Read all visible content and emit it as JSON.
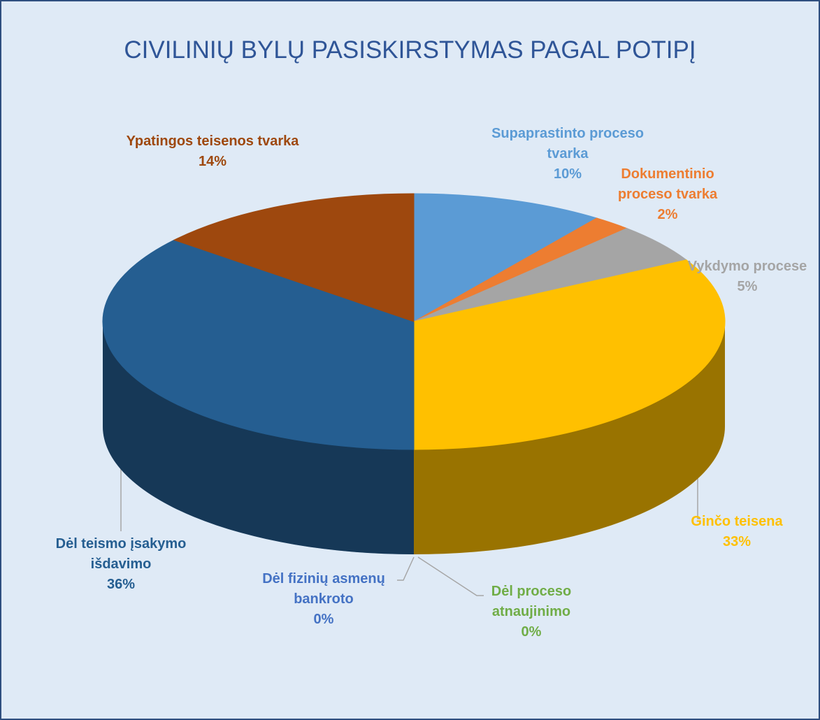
{
  "chart_data": {
    "type": "pie3d",
    "title": "CIVILINIŲ BYLŲ PASISKIRSTYMAS PAGAL POTIPĮ",
    "categories": [
      "Supaprastinto proceso tvarka",
      "Dokumentinio proceso tvarka",
      "Vykdymo procese",
      "Ginčo teisena",
      "Dėl proceso atnaujinimo",
      "Dėl fizinių asmenų bankroto",
      "Dėl teismo įsakymo išdavimo",
      "Ypatingos teisenos tvarka"
    ],
    "values": [
      10,
      2,
      5,
      33,
      0,
      0,
      36,
      14
    ],
    "value_labels": [
      "10%",
      "2%",
      "5%",
      "33%",
      "0%",
      "0%",
      "36%",
      "14%"
    ],
    "colors": [
      "#5b9bd5",
      "#ed7d31",
      "#a5a5a5",
      "#ffc000",
      "#70ad47",
      "#4472c4",
      "#255e91",
      "#9e480e"
    ]
  }
}
